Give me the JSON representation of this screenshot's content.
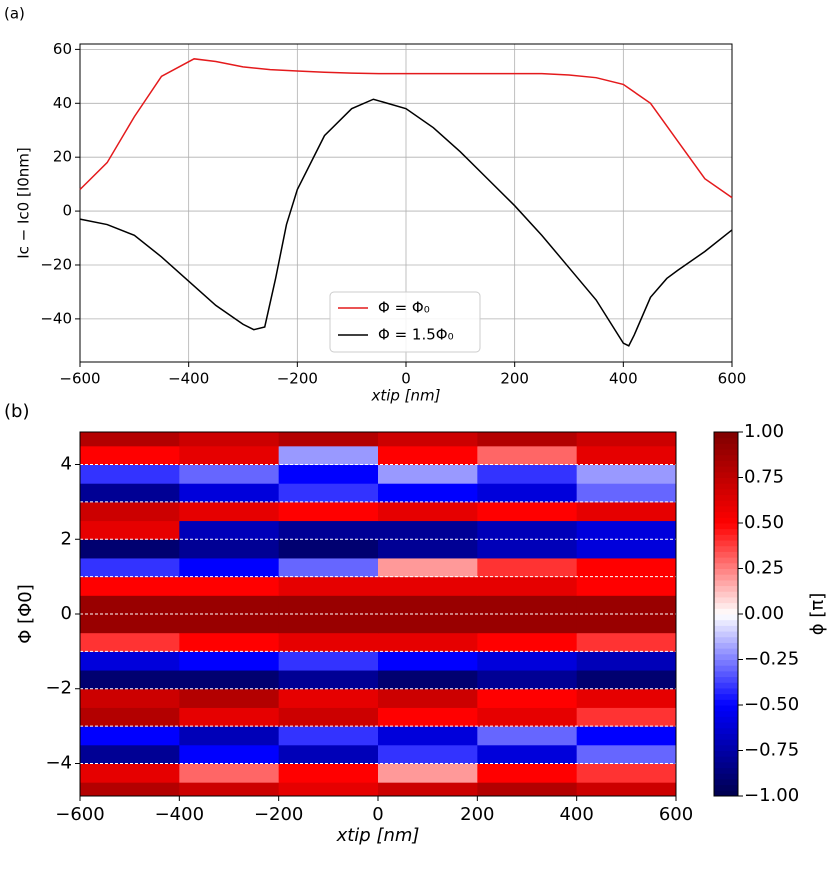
{
  "chart_data": [
    {
      "type": "line",
      "panel_label": "(a)",
      "xlabel": "xtip [nm]",
      "ylabel": "Ic − Ic0 [I0nm]",
      "xlim": [
        -600,
        600
      ],
      "ylim": [
        -56,
        62
      ],
      "xticks": [
        {
          "value": -600,
          "label": "−600"
        },
        {
          "value": -400,
          "label": "−400"
        },
        {
          "value": -200,
          "label": "−200"
        },
        0,
        200,
        400,
        600
      ],
      "yticks": [
        {
          "value": -40,
          "label": "−40"
        },
        {
          "value": -20,
          "label": "−20"
        },
        0,
        20,
        40,
        60
      ],
      "grid": true,
      "legend": "lower center",
      "series": [
        {
          "name": "Φ = Φ₀",
          "color": "#e41a1c",
          "x": [
            -600,
            -550,
            -500,
            -450,
            -390,
            -350,
            -300,
            -250,
            -200,
            -150,
            -100,
            -50,
            0,
            50,
            100,
            150,
            200,
            250,
            300,
            350,
            400,
            450,
            500,
            550,
            600
          ],
          "values": [
            8,
            18,
            35,
            50,
            56.5,
            55.5,
            53.5,
            52.5,
            52,
            51.5,
            51.2,
            51,
            51,
            51,
            51,
            51,
            51,
            51,
            50.5,
            49.5,
            47,
            40,
            26,
            12,
            5
          ]
        },
        {
          "name": "Φ = 1.5Φ₀",
          "color": "#000000",
          "x": [
            -600,
            -550,
            -500,
            -450,
            -400,
            -350,
            -300,
            -280,
            -260,
            -240,
            -220,
            -200,
            -150,
            -100,
            -60,
            0,
            50,
            100,
            150,
            200,
            250,
            300,
            350,
            400,
            410,
            420,
            450,
            480,
            500,
            550,
            600
          ],
          "values": [
            -3,
            -5,
            -9,
            -17,
            -26,
            -35,
            -42,
            -44,
            -43,
            -25,
            -5,
            8,
            28,
            38,
            41.5,
            38,
            31,
            22,
            12,
            2,
            -9,
            -21,
            -33,
            -49,
            -50,
            -46,
            -32,
            -25,
            -22,
            -15,
            -7
          ]
        }
      ]
    },
    {
      "type": "heatmap",
      "panel_label": "(b)",
      "xlabel": "xtip  [nm]",
      "ylabel": "Φ  [Φ0]",
      "colorbar_label": "ϕ  [π]",
      "colormap": "seismic",
      "xlim": [
        -600,
        600
      ],
      "ylim": [
        -4.87,
        4.87
      ],
      "xticks": [
        {
          "value": -600,
          "label": "−600"
        },
        {
          "value": -400,
          "label": "−400"
        },
        {
          "value": -200,
          "label": "−200"
        },
        0,
        200,
        400,
        600
      ],
      "yticks": [
        {
          "value": -4,
          "label": "−4"
        },
        {
          "value": -2,
          "label": "−2"
        },
        0,
        2,
        4
      ],
      "clim": [
        -1,
        1
      ],
      "cticks": [
        {
          "value": -1,
          "label": "−1.00"
        },
        {
          "value": -0.75,
          "label": "−0.75"
        },
        {
          "value": -0.5,
          "label": "−0.50"
        },
        {
          "value": -0.25,
          "label": "−0.25"
        },
        {
          "value": 0,
          "label": "0.00"
        },
        {
          "value": 0.25,
          "label": "0.25"
        },
        {
          "value": 0.5,
          "label": "0.50"
        },
        {
          "value": 0.75,
          "label": "0.75"
        },
        {
          "value": 1,
          "label": "1.00"
        }
      ],
      "dashed_lines": [
        -4,
        -3,
        -2,
        -1,
        0,
        1,
        2,
        3,
        4
      ],
      "x": [
        -500,
        -300,
        -100,
        100,
        300,
        500
      ],
      "y": [
        -4.75,
        -4.25,
        -3.75,
        -3.25,
        -2.75,
        -2.25,
        -1.75,
        -1.25,
        -0.75,
        -0.25,
        0.25,
        0.75,
        1.25,
        1.75,
        2.25,
        2.75,
        3.25,
        3.75,
        4.25,
        4.75
      ],
      "z": [
        [
          0.8,
          0.7,
          0.6,
          0.7,
          0.8,
          0.7
        ],
        [
          0.6,
          0.3,
          0.5,
          0.2,
          0.5,
          0.4
        ],
        [
          -0.8,
          -0.5,
          -0.7,
          -0.4,
          -0.6,
          -0.3
        ],
        [
          -0.5,
          -0.7,
          -0.4,
          -0.6,
          -0.3,
          -0.5
        ],
        [
          0.8,
          0.6,
          0.7,
          0.5,
          0.6,
          0.4
        ],
        [
          0.7,
          0.8,
          0.6,
          0.7,
          0.5,
          0.6
        ],
        [
          -0.9,
          -0.9,
          -0.8,
          -0.9,
          -0.8,
          -0.9
        ],
        [
          -0.6,
          -0.5,
          -0.4,
          -0.5,
          -0.6,
          -0.7
        ],
        [
          0.4,
          0.5,
          0.6,
          0.6,
          0.5,
          0.4
        ],
        [
          0.9,
          0.9,
          0.9,
          0.9,
          0.9,
          0.9
        ],
        [
          0.9,
          0.9,
          0.9,
          0.9,
          0.9,
          0.9
        ],
        [
          0.5,
          0.5,
          0.6,
          0.6,
          0.6,
          0.5
        ],
        [
          -0.4,
          -0.5,
          -0.3,
          0.2,
          0.4,
          0.5
        ],
        [
          -0.9,
          -0.8,
          -0.9,
          -0.8,
          -0.7,
          -0.6
        ],
        [
          0.6,
          -0.7,
          -0.8,
          -0.8,
          -0.7,
          -0.6
        ],
        [
          0.7,
          0.6,
          0.5,
          0.6,
          0.5,
          0.6
        ],
        [
          -0.8,
          -0.6,
          -0.4,
          -0.5,
          -0.6,
          -0.3
        ],
        [
          -0.4,
          -0.3,
          -0.5,
          -0.2,
          -0.4,
          -0.2
        ],
        [
          0.5,
          0.6,
          -0.2,
          0.5,
          0.3,
          0.6
        ],
        [
          0.8,
          0.7,
          0.8,
          0.7,
          0.8,
          0.7
        ]
      ]
    }
  ]
}
